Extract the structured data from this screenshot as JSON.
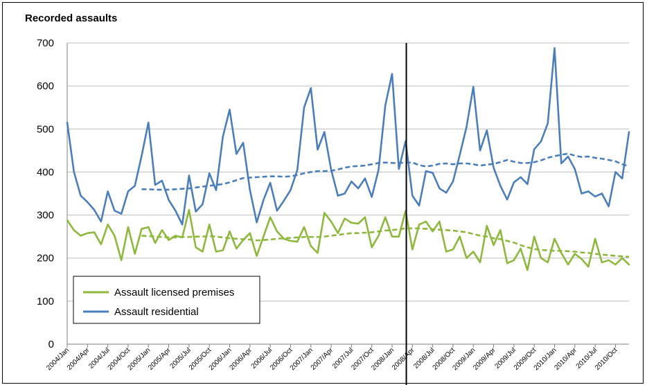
{
  "chart_data": {
    "type": "line",
    "title": "Recorded assaults",
    "xlabel": "",
    "ylabel": "",
    "ylim": [
      0,
      700
    ],
    "yticks": [
      0,
      100,
      200,
      300,
      400,
      500,
      600,
      700
    ],
    "grid": true,
    "legend_position": "bottom-left",
    "x_start": "2004/Jan",
    "x_end": "2010/Dec",
    "x_tick_labels": [
      "2004/Jan",
      "2004/Apr",
      "2004/Jul",
      "2004/Oct",
      "2005/Jan",
      "2005/Apr",
      "2005/Jul",
      "2005/Oct",
      "2006/Jan",
      "2006/Apr",
      "2006/Jul",
      "2006/Oct",
      "2007/Jan",
      "2007/Apr",
      "2007/Jul",
      "2007/Oct",
      "2008/Jan",
      "2008/Apr",
      "2008/Jul",
      "2008/Oct",
      "2009/Jan",
      "2009/Apr",
      "2009/Jul",
      "2009/Oct",
      "2010/Jan",
      "2010/Apr",
      "2010/Jul",
      "2010/Oct"
    ],
    "vertical_marker": "2008/Mar",
    "series": [
      {
        "name": "Assault licensed premises",
        "color": "#8DB83C",
        "style": "solid",
        "values": [
          288,
          265,
          252,
          258,
          260,
          232,
          278,
          252,
          195,
          272,
          210,
          268,
          272,
          235,
          265,
          242,
          252,
          248,
          312,
          225,
          215,
          278,
          215,
          218,
          262,
          222,
          242,
          258,
          205,
          250,
          295,
          262,
          245,
          240,
          238,
          272,
          228,
          212,
          305,
          285,
          258,
          292,
          282,
          280,
          295,
          225,
          252,
          295,
          250,
          250,
          310,
          220,
          278,
          285,
          262,
          285,
          215,
          220,
          250,
          200,
          215,
          190,
          275,
          230,
          265,
          188,
          195,
          222,
          172,
          250,
          200,
          190,
          245,
          212,
          185,
          210,
          198,
          180,
          245,
          190,
          195,
          185,
          200,
          185
        ]
      },
      {
        "name": "Assault residential",
        "color": "#4A7EBB",
        "style": "solid",
        "values": [
          515,
          400,
          345,
          330,
          312,
          285,
          355,
          310,
          303,
          355,
          368,
          438,
          515,
          370,
          380,
          335,
          310,
          278,
          392,
          308,
          325,
          397,
          358,
          482,
          545,
          442,
          468,
          358,
          283,
          335,
          375,
          310,
          333,
          358,
          405,
          550,
          595,
          452,
          493,
          405,
          345,
          350,
          378,
          362,
          385,
          342,
          405,
          555,
          628,
          407,
          472,
          345,
          322,
          402,
          398,
          362,
          352,
          378,
          440,
          505,
          598,
          450,
          497,
          410,
          368,
          336,
          376,
          388,
          372,
          453,
          471,
          513,
          688,
          420,
          436,
          407,
          350,
          355,
          343,
          350,
          320,
          400,
          385,
          493
        ]
      },
      {
        "name": "",
        "color": "#8DB83C",
        "style": "dashed",
        "values": [
          null,
          null,
          null,
          null,
          null,
          null,
          null,
          null,
          null,
          null,
          null,
          252,
          251,
          250,
          249,
          248,
          248,
          249,
          249,
          250,
          250,
          251,
          250,
          248,
          246,
          245,
          244,
          243,
          241,
          242,
          243,
          245,
          246,
          247,
          248,
          249,
          249,
          249,
          250,
          252,
          254,
          256,
          258,
          258,
          259,
          260,
          262,
          264,
          265,
          267,
          269,
          269,
          269,
          268,
          267,
          266,
          265,
          264,
          262,
          260,
          256,
          252,
          250,
          246,
          244,
          240,
          236,
          230,
          225,
          221,
          219,
          218,
          217,
          217,
          216,
          215,
          213,
          212,
          210,
          208,
          207,
          205,
          204,
          203
        ]
      },
      {
        "name": "",
        "color": "#4A7EBB",
        "style": "dashed",
        "values": [
          null,
          null,
          null,
          null,
          null,
          null,
          null,
          null,
          null,
          null,
          null,
          360,
          360,
          359,
          359,
          359,
          360,
          361,
          362,
          364,
          366,
          368,
          370,
          372,
          376,
          381,
          386,
          387,
          388,
          389,
          390,
          390,
          389,
          390,
          393,
          397,
          400,
          402,
          402,
          403,
          406,
          410,
          413,
          414,
          415,
          418,
          421,
          422,
          421,
          421,
          422,
          422,
          416,
          413,
          415,
          419,
          420,
          418,
          420,
          420,
          418,
          415,
          417,
          419,
          423,
          428,
          424,
          421,
          421,
          423,
          427,
          433,
          437,
          440,
          443,
          438,
          435,
          436,
          433,
          431,
          428,
          425,
          418,
          413
        ]
      }
    ]
  }
}
